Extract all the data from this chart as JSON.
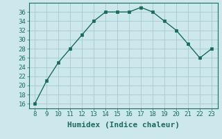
{
  "x": [
    8,
    9,
    10,
    11,
    12,
    13,
    14,
    15,
    16,
    17,
    18,
    19,
    20,
    21,
    22,
    23
  ],
  "y": [
    16,
    21,
    25,
    28,
    31,
    34,
    36,
    36,
    36,
    37,
    36,
    34,
    32,
    29,
    26,
    28
  ],
  "line_color": "#1a6b5a",
  "marker": "s",
  "marker_size": 2.5,
  "background_color": "#cce8ec",
  "grid_color": "#aacdd4",
  "xlabel": "Humidex (Indice chaleur)",
  "xlabel_fontsize": 8,
  "ylabel_ticks": [
    16,
    18,
    20,
    22,
    24,
    26,
    28,
    30,
    32,
    34,
    36
  ],
  "xlim": [
    7.5,
    23.5
  ],
  "ylim": [
    15,
    38
  ],
  "tick_fontsize": 6.5,
  "linewidth": 1.0
}
